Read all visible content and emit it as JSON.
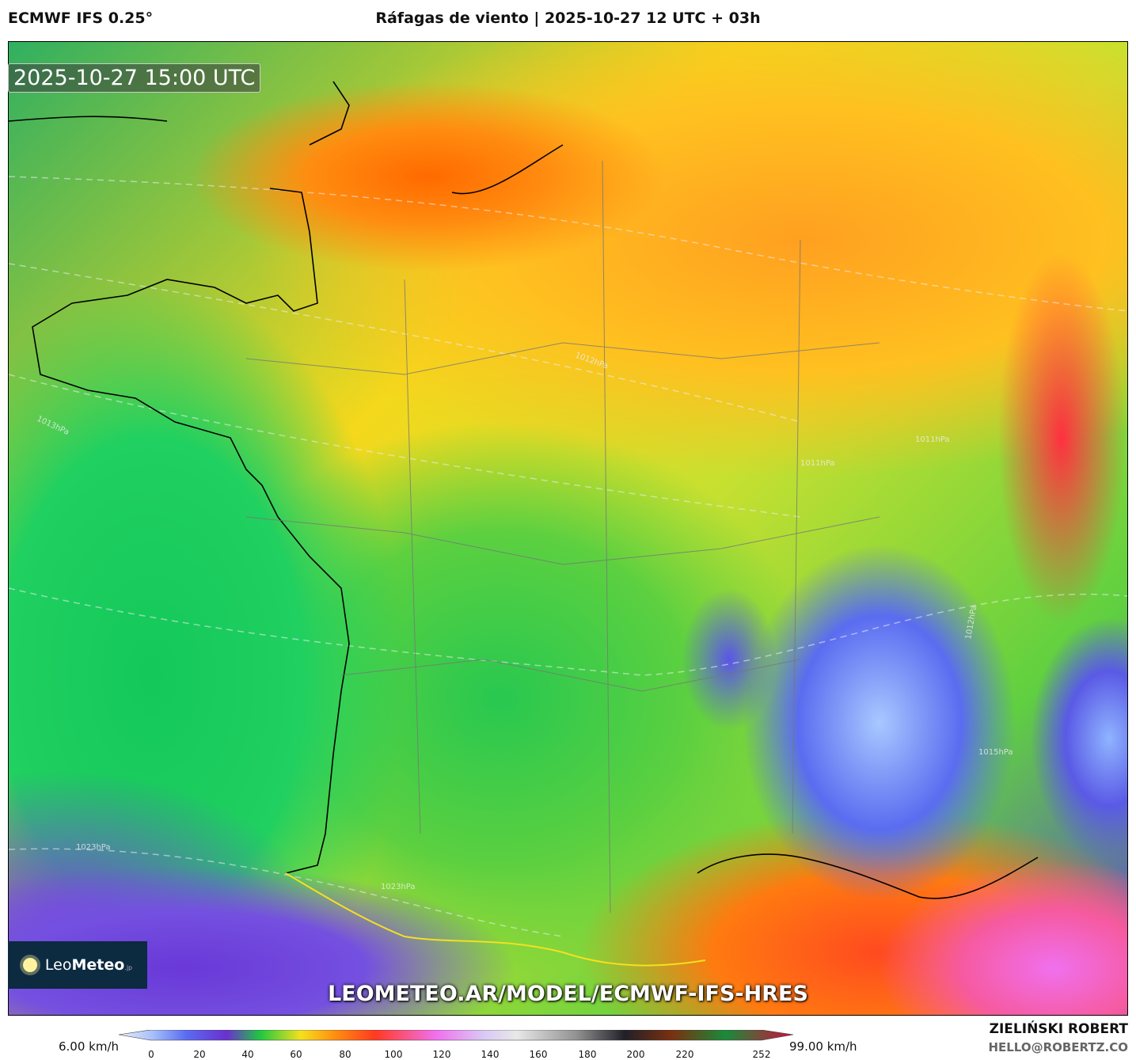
{
  "header": {
    "model": "ECMWF IFS 0.25°",
    "title": "Ráfagas de viento | 2025-10-27 12 UTC + 03h"
  },
  "map": {
    "valid_time": "2025-10-27 15:00 UTC",
    "watermark_url": "LEOMETEO.AR/MODEL/ECMWF-IFS-HRES",
    "logo_text": "LeoMeteo.jp",
    "isobar_labels": [
      "1023hPa",
      "1023hPa",
      "1023hPa",
      "1013hPa",
      "1012hPa",
      "1011hPa",
      "1012hPa",
      "1015hPa"
    ]
  },
  "legend": {
    "min_label": "6.00 km/h",
    "max_label": "99.00 km/h",
    "ticks": [
      "0",
      "20",
      "40",
      "60",
      "80",
      "100",
      "120",
      "140",
      "160",
      "180",
      "200",
      "220",
      "252"
    ],
    "colors": [
      "#e8eefc",
      "#a8c0f8",
      "#5a6cf0",
      "#6a30d0",
      "#20c840",
      "#f4e020",
      "#ff9010",
      "#ff3a20",
      "#f070ee",
      "#d8c8f4",
      "#e8e8e8",
      "#909090",
      "#202028",
      "#7a3010",
      "#1a8a3a",
      "#d0103c"
    ]
  },
  "footer": {
    "author": "ZIELIŃSKI ROBERT",
    "email": "HELLO@ROBERTZ.CO"
  }
}
